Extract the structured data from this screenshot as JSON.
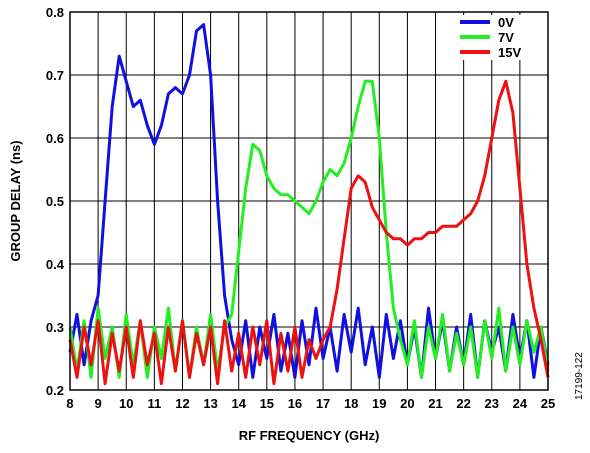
{
  "chart_data": {
    "type": "line",
    "xlabel": "RF FREQUENCY (GHz)",
    "ylabel": "GROUP DELAY (ns)",
    "figure_id": "17199-122",
    "xlim": [
      8,
      25
    ],
    "xticks": [
      8,
      9,
      10,
      11,
      12,
      13,
      14,
      15,
      16,
      17,
      18,
      19,
      20,
      21,
      22,
      23,
      24,
      25
    ],
    "ylim": [
      0.2,
      0.8
    ],
    "yticks": [
      0.2,
      0.3,
      0.4,
      0.5,
      0.6,
      0.7,
      0.8
    ],
    "grid": true,
    "legend": "upper right",
    "x": [
      8,
      8.25,
      8.5,
      8.75,
      9,
      9.25,
      9.5,
      9.75,
      10,
      10.25,
      10.5,
      10.75,
      11,
      11.25,
      11.5,
      11.75,
      12,
      12.25,
      12.5,
      12.75,
      13,
      13.25,
      13.5,
      13.75,
      14,
      14.25,
      14.5,
      14.75,
      15,
      15.25,
      15.5,
      15.75,
      16,
      16.25,
      16.5,
      16.75,
      17,
      17.25,
      17.5,
      17.75,
      18,
      18.25,
      18.5,
      18.75,
      19,
      19.25,
      19.5,
      19.75,
      20,
      20.25,
      20.5,
      20.75,
      21,
      21.25,
      21.5,
      21.75,
      22,
      22.25,
      22.5,
      22.75,
      23,
      23.25,
      23.5,
      23.75,
      24,
      24.25,
      24.5,
      24.75,
      25
    ],
    "series": [
      {
        "name": "0V",
        "color": "#1010e0",
        "values": [
          0.26,
          0.32,
          0.24,
          0.31,
          0.35,
          0.5,
          0.65,
          0.73,
          0.69,
          0.65,
          0.66,
          0.62,
          0.59,
          0.62,
          0.67,
          0.68,
          0.67,
          0.7,
          0.77,
          0.78,
          0.7,
          0.5,
          0.35,
          0.28,
          0.24,
          0.31,
          0.22,
          0.3,
          0.25,
          0.32,
          0.23,
          0.29,
          0.22,
          0.31,
          0.24,
          0.33,
          0.25,
          0.3,
          0.23,
          0.32,
          0.26,
          0.33,
          0.24,
          0.3,
          0.22,
          0.32,
          0.25,
          0.31,
          0.24,
          0.3,
          0.22,
          0.33,
          0.25,
          0.31,
          0.23,
          0.3,
          0.24,
          0.32,
          0.22,
          0.31,
          0.26,
          0.3,
          0.23,
          0.32,
          0.25,
          0.31,
          0.22,
          0.3,
          0.24
        ]
      },
      {
        "name": "7V",
        "color": "#22ee22",
        "values": [
          0.3,
          0.23,
          0.31,
          0.22,
          0.33,
          0.25,
          0.3,
          0.22,
          0.32,
          0.24,
          0.31,
          0.22,
          0.3,
          0.25,
          0.33,
          0.23,
          0.31,
          0.22,
          0.3,
          0.24,
          0.32,
          0.23,
          0.3,
          0.32,
          0.42,
          0.52,
          0.59,
          0.58,
          0.54,
          0.52,
          0.51,
          0.51,
          0.5,
          0.49,
          0.48,
          0.5,
          0.53,
          0.55,
          0.54,
          0.56,
          0.6,
          0.65,
          0.69,
          0.69,
          0.6,
          0.45,
          0.33,
          0.28,
          0.24,
          0.31,
          0.22,
          0.3,
          0.25,
          0.32,
          0.23,
          0.29,
          0.24,
          0.3,
          0.22,
          0.31,
          0.25,
          0.33,
          0.23,
          0.3,
          0.24,
          0.31,
          0.26,
          0.3,
          0.23
        ]
      },
      {
        "name": "15V",
        "color": "#ee1111",
        "values": [
          0.28,
          0.22,
          0.3,
          0.24,
          0.31,
          0.21,
          0.29,
          0.23,
          0.3,
          0.22,
          0.31,
          0.24,
          0.29,
          0.21,
          0.3,
          0.23,
          0.31,
          0.22,
          0.29,
          0.24,
          0.3,
          0.21,
          0.31,
          0.23,
          0.29,
          0.22,
          0.3,
          0.24,
          0.31,
          0.21,
          0.29,
          0.23,
          0.3,
          0.22,
          0.28,
          0.25,
          0.28,
          0.3,
          0.36,
          0.44,
          0.52,
          0.54,
          0.53,
          0.49,
          0.47,
          0.45,
          0.44,
          0.44,
          0.43,
          0.44,
          0.44,
          0.45,
          0.45,
          0.46,
          0.46,
          0.46,
          0.47,
          0.48,
          0.5,
          0.54,
          0.6,
          0.66,
          0.69,
          0.64,
          0.52,
          0.4,
          0.33,
          0.28,
          0.22
        ]
      }
    ]
  }
}
